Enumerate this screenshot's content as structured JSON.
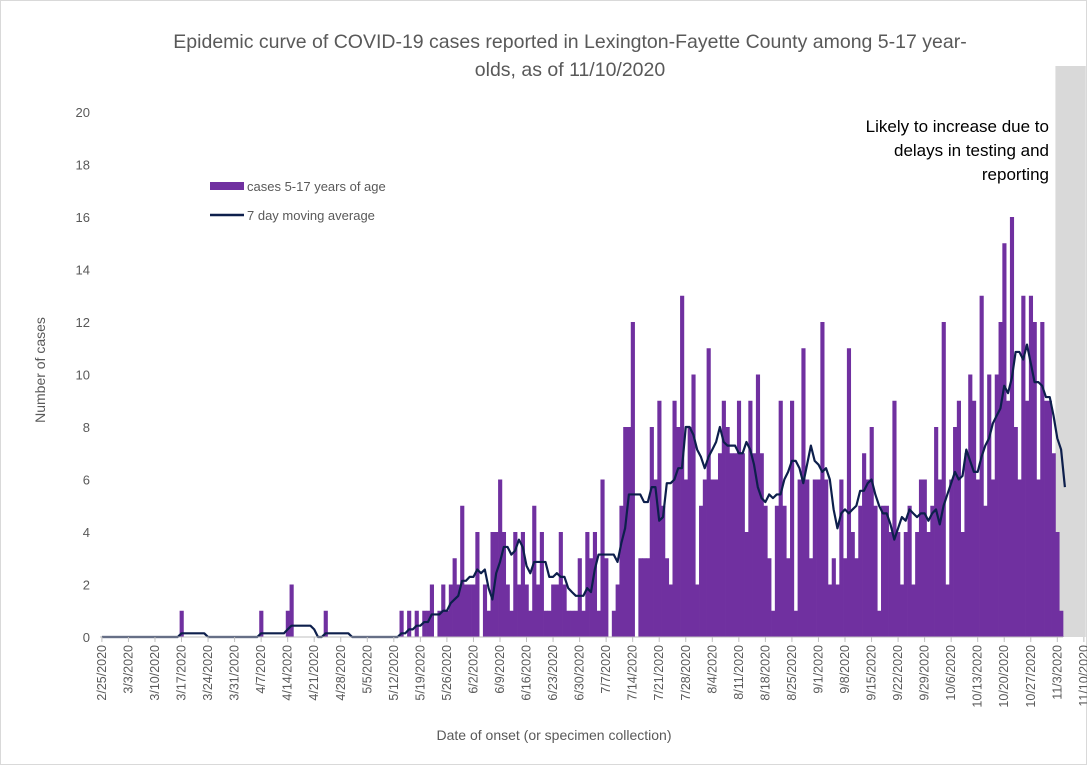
{
  "colors": {
    "bar": "#7030A0",
    "line": "#0D1F4C",
    "shade": "#D9D9D9",
    "axis": "#BFBFBF",
    "text": "#595959"
  },
  "chart_data": {
    "type": "bar",
    "title": "Epidemic curve of COVID-19 cases reported in Lexington-Fayette County among 5-17 year-olds, as of 11/10/2020",
    "title_lines": [
      "Epidemic curve of COVID-19 cases reported in Lexington-Fayette County among 5-17 year-",
      "olds, as of 11/10/2020"
    ],
    "xlabel": "Date of onset (or specimen collection)",
    "ylabel": "Number of cases",
    "ylim": [
      0,
      20
    ],
    "y_ticks": [
      "0",
      "2",
      "4",
      "6",
      "8",
      "10",
      "12",
      "14",
      "16",
      "18",
      "20"
    ],
    "x_start": "2/25/2020",
    "x_end": "11/10/2020",
    "x_tick_labels": [
      "2/25/2020",
      "3/3/2020",
      "3/10/2020",
      "3/17/2020",
      "3/24/2020",
      "3/31/2020",
      "4/7/2020",
      "4/14/2020",
      "4/21/2020",
      "4/28/2020",
      "5/5/2020",
      "5/12/2020",
      "5/19/2020",
      "5/26/2020",
      "6/2/2020",
      "6/9/2020",
      "6/16/2020",
      "6/23/2020",
      "6/30/2020",
      "7/7/2020",
      "7/14/2020",
      "7/21/2020",
      "7/28/2020",
      "8/4/2020",
      "8/11/2020",
      "8/18/2020",
      "8/25/2020",
      "9/1/2020",
      "9/8/2020",
      "9/15/2020",
      "9/22/2020",
      "9/29/2020",
      "10/6/2020",
      "10/13/2020",
      "10/20/2020",
      "10/27/2020",
      "11/3/2020",
      "11/10/2020"
    ],
    "legend": {
      "placement": "upper-left",
      "bar_label": "cases 5-17 years of age",
      "line_label": "7 day moving average"
    },
    "annotation": {
      "lines": [
        "Likely to increase due to",
        "delays in testing and",
        "reporting"
      ],
      "shaded_from": "11/3/2020",
      "shaded_to": "11/10/2020"
    },
    "series": [
      {
        "name": "cases 5-17 years of age",
        "type": "bar",
        "values": [
          0,
          0,
          0,
          0,
          0,
          0,
          0,
          0,
          0,
          0,
          0,
          0,
          0,
          0,
          0,
          0,
          0,
          0,
          0,
          0,
          0,
          1,
          0,
          0,
          0,
          0,
          0,
          0,
          0,
          0,
          0,
          0,
          0,
          0,
          0,
          0,
          0,
          0,
          0,
          0,
          0,
          0,
          1,
          0,
          0,
          0,
          0,
          0,
          0,
          1,
          2,
          0,
          0,
          0,
          0,
          0,
          0,
          0,
          0,
          1,
          0,
          0,
          0,
          0,
          0,
          0,
          0,
          0,
          0,
          0,
          0,
          0,
          0,
          0,
          0,
          0,
          0,
          0,
          0,
          1,
          0,
          1,
          0,
          1,
          0,
          1,
          1,
          2,
          0,
          1,
          2,
          1,
          2,
          3,
          2,
          5,
          2,
          2,
          2,
          4,
          0,
          2,
          1,
          4,
          4,
          6,
          4,
          2,
          1,
          4,
          2,
          4,
          2,
          1,
          5,
          2,
          4,
          1,
          1,
          2,
          2,
          4,
          2,
          1,
          1,
          1,
          3,
          1,
          4,
          3,
          4,
          1,
          6,
          3,
          0,
          1,
          2,
          5,
          8,
          8,
          12,
          0,
          3,
          3,
          3,
          8,
          6,
          9,
          5,
          3,
          2,
          9,
          8,
          13,
          6,
          8,
          10,
          2,
          5,
          6,
          11,
          6,
          6,
          7,
          9,
          8,
          7,
          7,
          9,
          7,
          4,
          9,
          7,
          10,
          7,
          5,
          3,
          1,
          5,
          9,
          5,
          3,
          9,
          1,
          6,
          11,
          6,
          3,
          6,
          6,
          12,
          6,
          2,
          3,
          2,
          6,
          3,
          11,
          4,
          3,
          5,
          7,
          6,
          8,
          5,
          1,
          5,
          5,
          4,
          9,
          4,
          2,
          4,
          5,
          2,
          4,
          6,
          6,
          4,
          5,
          8,
          6,
          12,
          2,
          6,
          8,
          9,
          4,
          7,
          10,
          9,
          6,
          13,
          5,
          10,
          6,
          10,
          12,
          15,
          9,
          16,
          8,
          6,
          13,
          9,
          13,
          12,
          6,
          12,
          9,
          9,
          7,
          4,
          1
        ]
      },
      {
        "name": "7 day moving average",
        "type": "line",
        "values": [
          0,
          0,
          0,
          0,
          0,
          0,
          0,
          0,
          0,
          0,
          0,
          0,
          0,
          0,
          0,
          0,
          0,
          0,
          0,
          0,
          0,
          0.14,
          0.14,
          0.14,
          0.14,
          0.14,
          0.14,
          0.14,
          0,
          0,
          0,
          0,
          0,
          0,
          0,
          0,
          0,
          0,
          0,
          0,
          0,
          0,
          0.14,
          0.14,
          0.14,
          0.14,
          0.14,
          0.14,
          0.14,
          0.29,
          0.43,
          0.43,
          0.43,
          0.43,
          0.43,
          0.43,
          0.29,
          0,
          0,
          0.14,
          0.14,
          0.14,
          0.14,
          0.14,
          0.14,
          0.14,
          0,
          0,
          0,
          0,
          0,
          0,
          0,
          0,
          0,
          0,
          0,
          0,
          0,
          0.14,
          0.14,
          0.29,
          0.29,
          0.43,
          0.43,
          0.57,
          0.57,
          0.86,
          0.86,
          0.86,
          1,
          1,
          1.29,
          1.43,
          1.57,
          2.14,
          2.14,
          2.29,
          2.29,
          2.57,
          2.43,
          2.57,
          1.86,
          1.43,
          2.43,
          2.86,
          3.43,
          3.43,
          3.14,
          3.29,
          3.71,
          3.43,
          2.71,
          2.43,
          2.86,
          2.86,
          2.86,
          2.86,
          2.29,
          2.29,
          2.43,
          2.29,
          2.29,
          1.86,
          1.71,
          1.57,
          1.57,
          1.57,
          1.86,
          1.71,
          2.57,
          3.14,
          3.14,
          3.14,
          3.14,
          3.14,
          2.86,
          3.57,
          4.14,
          5.43,
          5.43,
          5.43,
          5.43,
          5.14,
          5.14,
          5.71,
          5.71,
          4.43,
          4.57,
          5.86,
          5.86,
          6,
          6.43,
          6.43,
          8,
          8,
          7.71,
          7.14,
          6.86,
          6.43,
          6.86,
          7.14,
          7.43,
          8,
          7.43,
          7.29,
          7.29,
          7.29,
          7,
          7,
          7.43,
          7.14,
          6.57,
          5.71,
          5.29,
          5.14,
          5.43,
          5.29,
          5.43,
          5.43,
          6,
          6.29,
          6.71,
          6.71,
          6.43,
          5.86,
          6.57,
          7.29,
          6.71,
          6.57,
          6.29,
          6.43,
          6,
          4.86,
          4.14,
          4.71,
          4.86,
          4.71,
          4.86,
          5,
          5.57,
          5.57,
          5.86,
          6,
          5.43,
          5,
          4.71,
          4.71,
          4.29,
          3.71,
          4.14,
          4.57,
          4.43,
          4.86,
          4.71,
          4.57,
          4.71,
          4.71,
          4.43,
          4.71,
          4.86,
          4.29,
          5,
          5.43,
          5.86,
          6.29,
          6,
          6.14,
          7.14,
          6.71,
          6.29,
          6.29,
          6.86,
          7.29,
          7.57,
          8.14,
          8.43,
          8.71,
          9.57,
          9.29,
          9.86,
          10.86,
          10.86,
          10.57,
          11.14,
          10.43,
          9.71,
          9.71,
          9.57,
          9.14,
          9.14,
          8.43,
          7.57,
          7.14,
          5.71
        ]
      }
    ]
  }
}
